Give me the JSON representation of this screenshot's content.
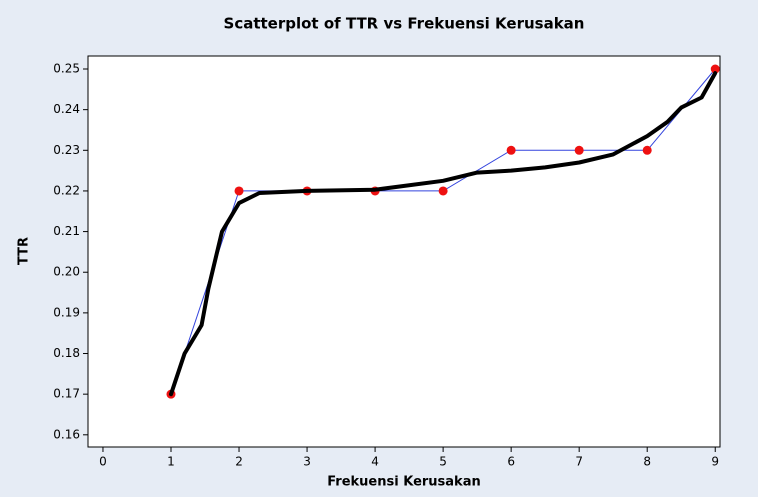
{
  "chart_data": {
    "type": "scatter",
    "title": "Scatterplot of TTR vs Frekuensi Kerusakan",
    "x_label": "Frekuensi Kerusakan",
    "y_label": "TTR",
    "xlim": [
      -0.22,
      9.07
    ],
    "ylim": [
      0.157,
      0.2532
    ],
    "xticks": [
      0,
      1,
      2,
      3,
      4,
      5,
      6,
      7,
      8,
      9
    ],
    "yticks": [
      0.16,
      0.17,
      0.18,
      0.19,
      {
        "value": 0.2,
        "label": "0.20"
      },
      0.21,
      0.22,
      0.23,
      0.24,
      0.25
    ],
    "series": [
      {
        "color": "#ee1111",
        "line_color": "#3344dd",
        "x": [
          1,
          2,
          3,
          4,
          5,
          6,
          7,
          8,
          9
        ],
        "values": [
          0.17,
          0.22,
          0.22,
          0.22,
          0.22,
          0.23,
          0.23,
          0.23,
          0.25
        ]
      },
      {
        "color": "#000000",
        "x": [
          1,
          1.2,
          1.45,
          1.55,
          1.75,
          2,
          2.3,
          3,
          4,
          5,
          5.5,
          6,
          6.5,
          7,
          7.5,
          8,
          8.3,
          8.5,
          8.8,
          9
        ],
        "values": [
          0.17,
          0.18,
          0.187,
          0.196,
          0.21,
          0.217,
          0.2195,
          0.22,
          0.2203,
          0.2225,
          0.2245,
          0.225,
          0.2258,
          0.227,
          0.229,
          0.2335,
          0.237,
          0.2405,
          0.243,
          0.249
        ]
      }
    ]
  }
}
